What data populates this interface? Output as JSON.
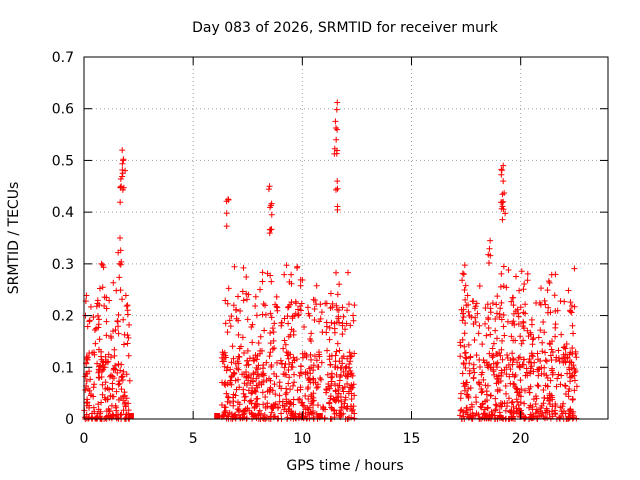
{
  "chart_data": {
    "type": "scatter",
    "title": "Day 083 of 2026, SRMTID for receiver murk",
    "xlabel": "GPS time / hours",
    "ylabel": "SRMTID / TECUs",
    "xlim": [
      0,
      24
    ],
    "ylim": [
      0,
      0.7
    ],
    "x_ticks": [
      "0",
      "5",
      "10",
      "15",
      "20"
    ],
    "y_ticks": [
      "0",
      "0.1",
      "0.2",
      "0.3",
      "0.4",
      "0.5",
      "0.6",
      "0.7"
    ],
    "grid": true,
    "marker": "+",
    "color": "#ff0000",
    "clusters": [
      {
        "x_range": [
          0.0,
          2.1
        ],
        "peaks": [
          [
            1.75,
            0.52
          ],
          [
            1.8,
            0.5
          ],
          [
            1.7,
            0.45
          ],
          [
            1.65,
            0.35
          ],
          [
            0.8,
            0.3
          ]
        ]
      },
      {
        "x_range": [
          6.3,
          12.4
        ],
        "peaks": [
          [
            6.6,
            0.425
          ],
          [
            8.5,
            0.45
          ],
          [
            8.6,
            0.395
          ],
          [
            11.6,
            0.612
          ],
          [
            11.55,
            0.54
          ],
          [
            11.6,
            0.46
          ]
        ]
      },
      {
        "x_range": [
          17.2,
          22.6
        ],
        "peaks": [
          [
            19.2,
            0.49
          ],
          [
            19.2,
            0.46
          ],
          [
            19.2,
            0.42
          ],
          [
            18.6,
            0.345
          ],
          [
            17.4,
            0.28
          ]
        ]
      }
    ],
    "baseline_squares": [
      2.15,
      6.1,
      10.8
    ]
  }
}
